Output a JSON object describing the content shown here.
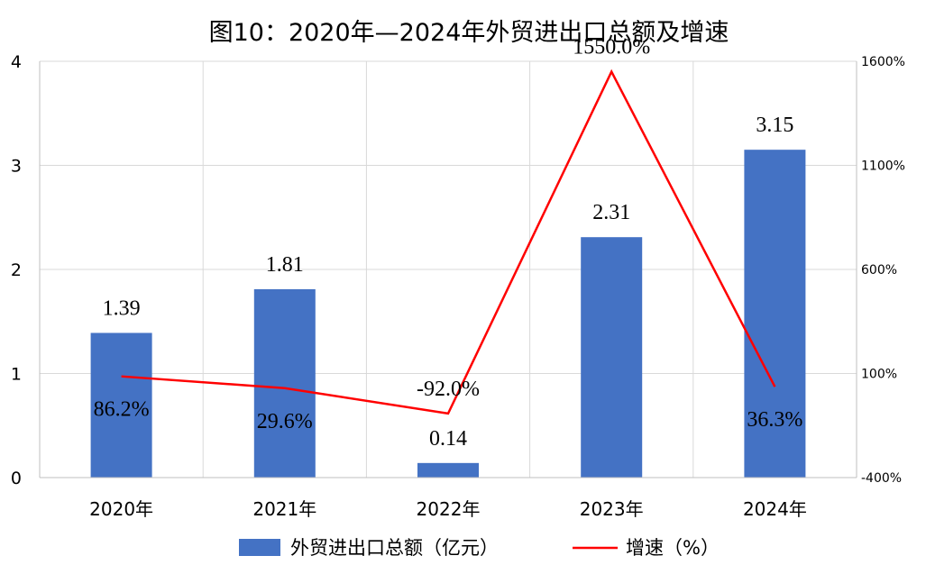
{
  "chart_data": {
    "type": "bar",
    "title": "图10：2020年—2024年外贸进出口总额及增速",
    "categories": [
      "2020年",
      "2021年",
      "2022年",
      "2023年",
      "2024年"
    ],
    "series": [
      {
        "name": "外贸进出口总额（亿元）",
        "type": "bar",
        "axis": "left",
        "color": "#4472C4",
        "values": [
          1.39,
          1.81,
          0.14,
          2.31,
          3.15
        ],
        "labels": [
          "1.39",
          "1.81",
          "0.14",
          "2.31",
          "3.15"
        ]
      },
      {
        "name": "增速（%）",
        "type": "line",
        "axis": "right",
        "color": "#FF0000",
        "values": [
          86.2,
          29.6,
          -92.0,
          1550.0,
          36.3
        ],
        "labels": [
          "86.2%",
          "29.6%",
          "-92.0%",
          "1550.0%",
          "36.3%"
        ]
      }
    ],
    "y_left": {
      "min": 0,
      "max": 4,
      "ticks": [
        0,
        1,
        2,
        3,
        4
      ],
      "tick_labels": [
        "0",
        "1",
        "2",
        "3",
        "4"
      ]
    },
    "y_right": {
      "min": -400,
      "max": 1600,
      "ticks": [
        -400,
        100,
        600,
        1100,
        1600
      ],
      "tick_labels": [
        "-400%",
        "100%",
        "600%",
        "1100%",
        "1600%"
      ]
    },
    "grid": true,
    "legend_position": "bottom"
  }
}
